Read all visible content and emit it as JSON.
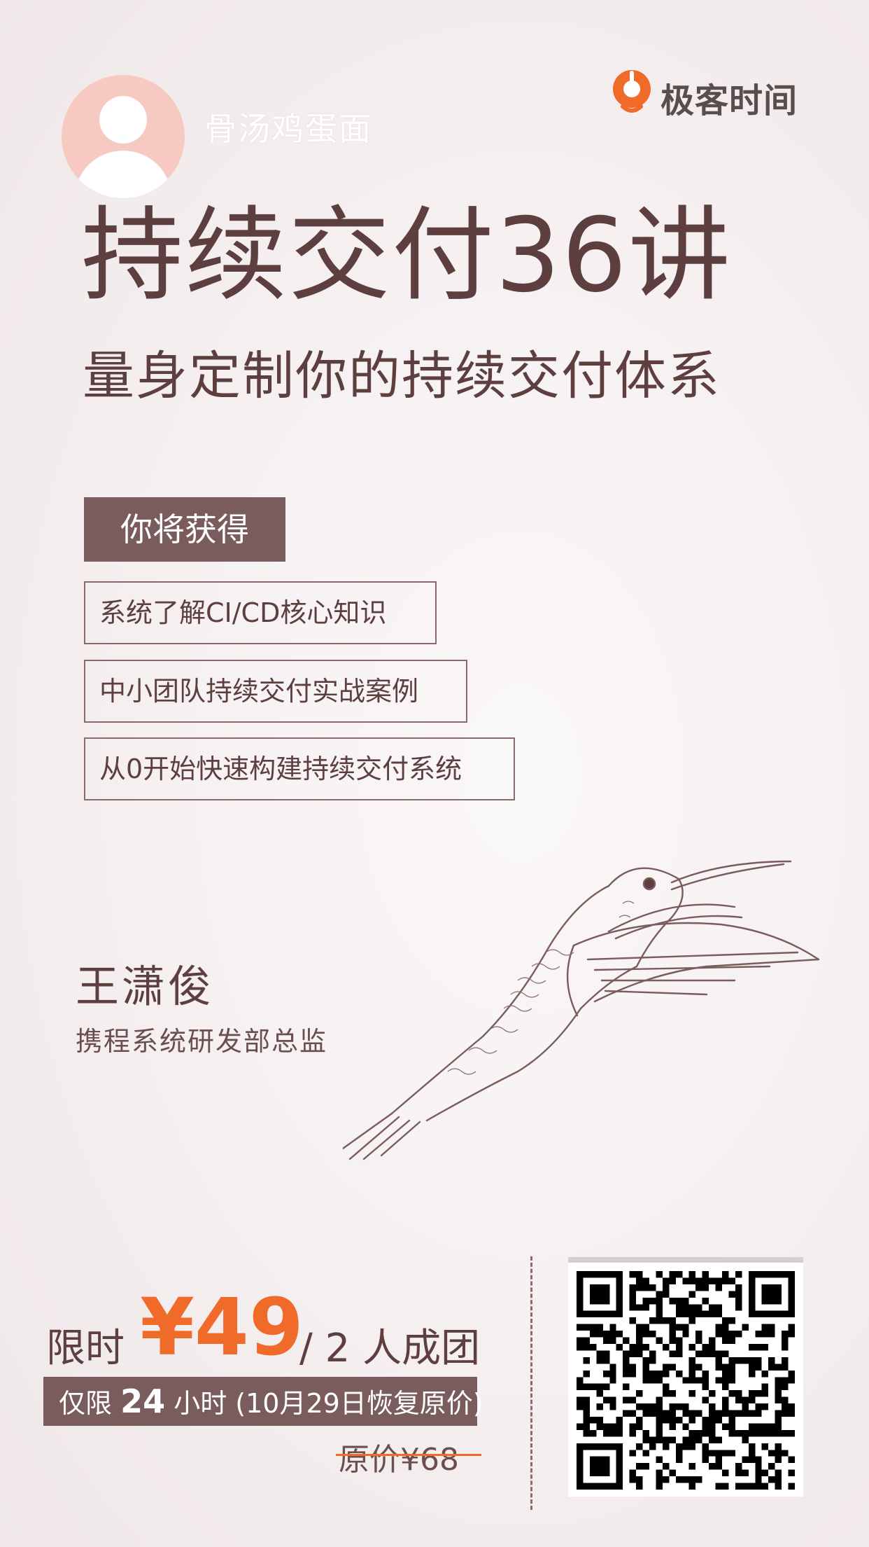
{
  "header": {
    "username": "骨汤鸡蛋面",
    "avatar_icon": "user-avatar-icon",
    "brand_name": "极客时间",
    "brand_logo_icon": "geektime-logo-icon",
    "colors": {
      "avatar_bg": "#f6c9c1",
      "brand_logo": "#f06a2a"
    }
  },
  "course": {
    "title": "持续交付36讲",
    "subtitle": "量身定制你的持续交付体系"
  },
  "benefits": {
    "heading": "你将获得",
    "items": [
      "系统了解CI/CD核心知识",
      "中小团队持续交付实战案例",
      "从0开始快速构建持续交付系统"
    ]
  },
  "author": {
    "name": "王潇俊",
    "title": "携程系统研发部总监"
  },
  "illustration": {
    "icon": "hummingbird-illustration"
  },
  "pricing": {
    "label": "限时",
    "price": "¥49",
    "suffix": "/ 2 人成团",
    "deadline_prefix": "仅限",
    "deadline_hours": "24",
    "deadline_suffix": "小时 (10月29日恢复原价)",
    "original_price": "原价¥68",
    "colors": {
      "price": "#f06a2a",
      "banner_bg": "#7a5c5c",
      "strike": "#f06a2a"
    }
  },
  "qr": {
    "icon": "qr-code"
  }
}
